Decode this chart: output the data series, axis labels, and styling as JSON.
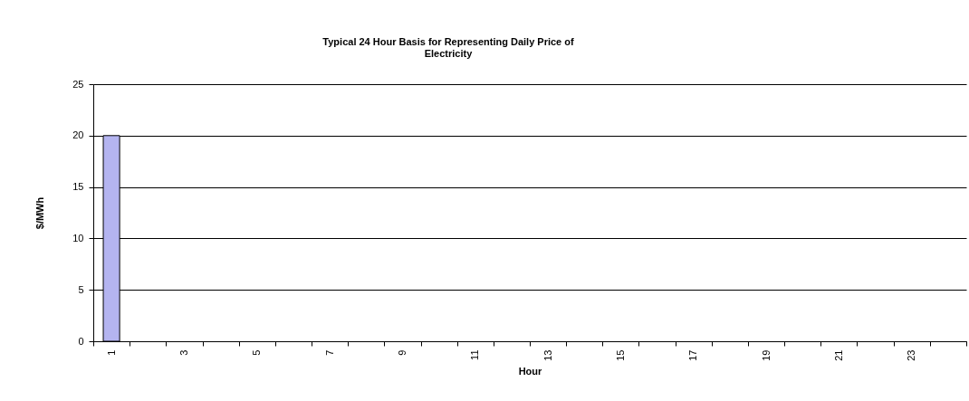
{
  "chart_data": {
    "type": "bar",
    "title": [
      "Typical 24 Hour Basis for Representing Daily Price of",
      "Electricity"
    ],
    "xlabel": "Hour",
    "ylabel": "$/MWh",
    "categories": [
      "1",
      null,
      "3",
      null,
      "5",
      null,
      "7",
      null,
      "9",
      null,
      "11",
      null,
      "13",
      null,
      "15",
      null,
      "17",
      null,
      "19",
      null,
      "21",
      null,
      "23",
      null
    ],
    "values": [
      20,
      null,
      null,
      null,
      null,
      null,
      null,
      null,
      null,
      null,
      null,
      null,
      null,
      null,
      null,
      null,
      null,
      null,
      null,
      null,
      null,
      null,
      null,
      null
    ],
    "color": "#b4b4f0",
    "ylim": [
      0,
      25
    ],
    "yticks": [
      0,
      5,
      10,
      15,
      20,
      25
    ],
    "grid": "y"
  }
}
